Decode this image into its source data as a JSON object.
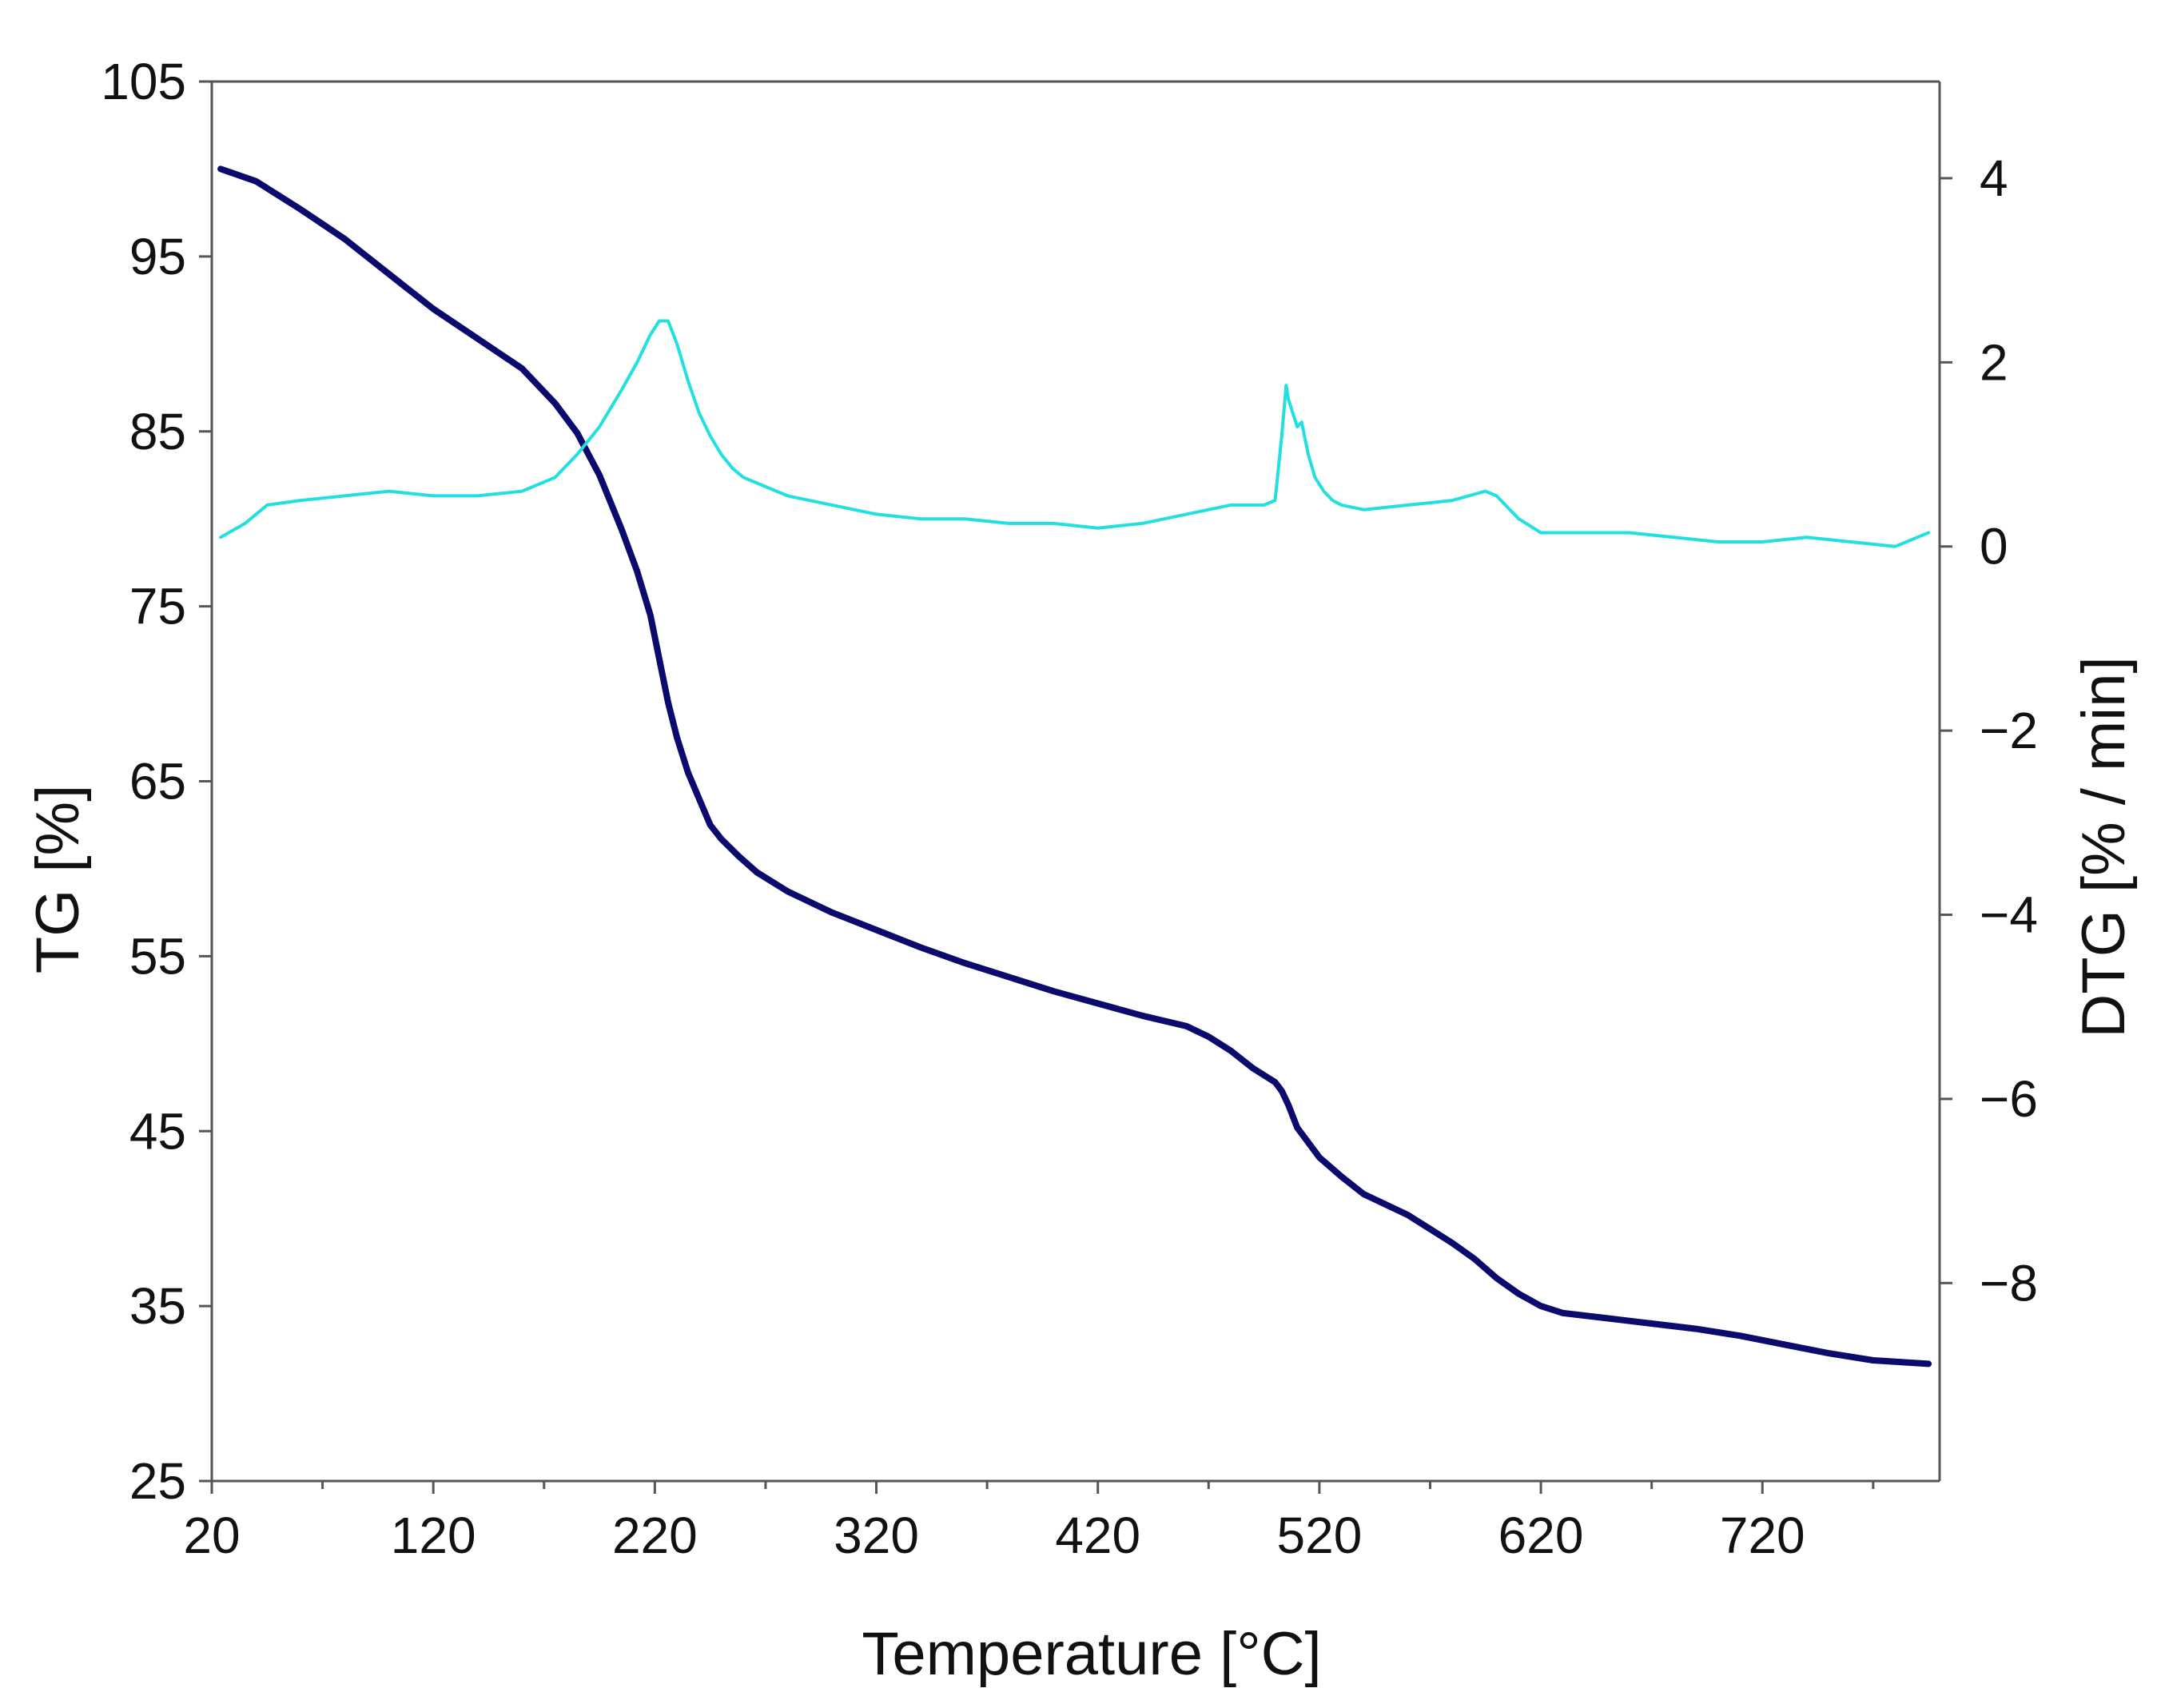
{
  "chart_data": {
    "type": "line",
    "title": "",
    "xlabel": "Temperature [°C]",
    "ylabel_left": "TG [%]",
    "ylabel_right": "DTG [% / min]",
    "xlim": [
      20,
      800
    ],
    "ylim_left": [
      25,
      105
    ],
    "ylim_right": [
      -10.15,
      5.05
    ],
    "x_ticks": [
      20,
      120,
      220,
      320,
      420,
      520,
      620,
      720
    ],
    "x_minor_ticks": [
      70,
      170,
      270,
      370,
      470,
      570,
      670,
      770
    ],
    "x_tick_labels": [
      "20",
      "120",
      "220",
      "320",
      "420",
      "520",
      "620",
      "720"
    ],
    "y_left_ticks": [
      25,
      35,
      45,
      55,
      65,
      75,
      85,
      95,
      105
    ],
    "y_left_tick_labels": [
      "25",
      "35",
      "45",
      "55",
      "65",
      "75",
      "85",
      "95",
      "105"
    ],
    "y_right_ticks": [
      -8,
      -6,
      -4,
      -2,
      0,
      2,
      4
    ],
    "y_right_tick_labels": [
      "−8",
      "−6",
      "−4",
      "−2",
      "0",
      "2",
      "4"
    ],
    "grid": false,
    "series": [
      {
        "name": "TG",
        "axis": "left",
        "color": "#0b0b6e",
        "x": [
          24,
          40,
          60,
          80,
          100,
          120,
          140,
          160,
          175,
          185,
          195,
          205,
          212,
          218,
          222,
          226,
          230,
          235,
          240,
          245,
          250,
          258,
          266,
          280,
          300,
          320,
          340,
          360,
          380,
          400,
          420,
          440,
          460,
          470,
          480,
          490,
          500,
          503,
          506,
          510,
          520,
          530,
          540,
          560,
          580,
          590,
          600,
          610,
          620,
          630,
          650,
          670,
          690,
          710,
          730,
          750,
          770,
          795
        ],
        "y": [
          100,
          99.3,
          97.7,
          96,
          94,
          92,
          90.3,
          88.6,
          86.6,
          84.9,
          82.5,
          79.4,
          77,
          74.5,
          72,
          69.5,
          67.5,
          65.5,
          64,
          62.5,
          61.7,
          60.7,
          59.8,
          58.7,
          57.5,
          56.5,
          55.5,
          54.6,
          53.8,
          53,
          52.3,
          51.6,
          51,
          50.4,
          49.6,
          48.6,
          47.8,
          47.3,
          46.5,
          45.2,
          43.5,
          42.4,
          41.4,
          40.2,
          38.6,
          37.7,
          36.6,
          35.7,
          35,
          34.6,
          34.3,
          34,
          33.7,
          33.3,
          32.8,
          32.3,
          31.9,
          31.7
        ]
      },
      {
        "name": "DTG",
        "axis": "right",
        "color": "#22e0e0",
        "x": [
          24,
          35,
          45,
          60,
          80,
          100,
          120,
          140,
          160,
          175,
          185,
          195,
          205,
          212,
          218,
          222,
          226,
          230,
          235,
          240,
          245,
          250,
          255,
          260,
          265,
          270,
          280,
          300,
          320,
          340,
          360,
          380,
          400,
          420,
          440,
          460,
          480,
          495,
          500,
          503,
          505,
          506,
          508,
          510,
          512,
          515,
          518,
          522,
          526,
          530,
          540,
          560,
          580,
          595,
          600,
          610,
          620,
          640,
          660,
          680,
          700,
          720,
          740,
          760,
          780,
          795
        ],
        "y": [
          0.1,
          0.25,
          0.45,
          0.5,
          0.55,
          0.6,
          0.55,
          0.55,
          0.6,
          0.75,
          1.0,
          1.3,
          1.7,
          2.0,
          2.3,
          2.45,
          2.45,
          2.2,
          1.8,
          1.45,
          1.2,
          1.0,
          0.85,
          0.75,
          0.7,
          0.65,
          0.55,
          0.45,
          0.35,
          0.3,
          0.3,
          0.25,
          0.25,
          0.2,
          0.25,
          0.35,
          0.45,
          0.45,
          0.5,
          1.2,
          1.75,
          1.6,
          1.45,
          1.3,
          1.35,
          1.0,
          0.75,
          0.6,
          0.5,
          0.45,
          0.4,
          0.45,
          0.5,
          0.6,
          0.55,
          0.3,
          0.15,
          0.15,
          0.15,
          0.1,
          0.05,
          0.05,
          0.1,
          0.05,
          0.0,
          0.15
        ]
      }
    ]
  }
}
